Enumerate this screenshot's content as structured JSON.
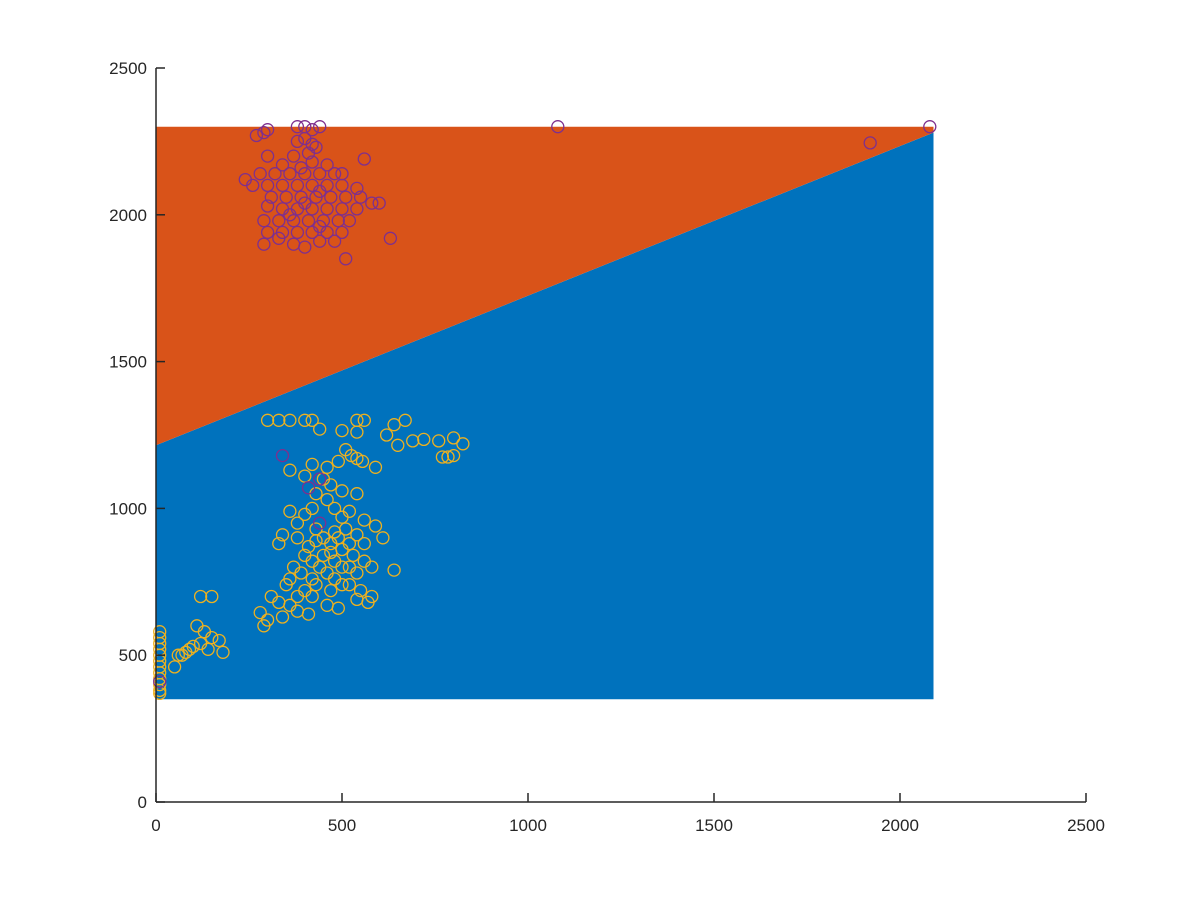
{
  "chart_data": {
    "type": "scatter",
    "title": "",
    "xlabel": "",
    "ylabel": "",
    "xlim": [
      0,
      2500
    ],
    "ylim": [
      0,
      2500
    ],
    "xticks": [
      0,
      500,
      1000,
      1500,
      2000,
      2500
    ],
    "yticks": [
      0,
      500,
      1000,
      1500,
      2000,
      2500
    ],
    "xtick_labels": [
      "0",
      "500",
      "1000",
      "1500",
      "2000",
      "2500"
    ],
    "ytick_labels": [
      "0",
      "500",
      "1000",
      "1500",
      "2000",
      "2500"
    ],
    "grid": false,
    "legend": "none",
    "decision_regions": {
      "x_range": [
        0,
        2090
      ],
      "y_range": [
        350,
        2300
      ],
      "boundary_line": [
        [
          0,
          1215
        ],
        [
          2090,
          2280
        ]
      ],
      "below_color": "#0072BD",
      "above_color": "#D95319"
    },
    "series": [
      {
        "marker": "circle-open",
        "color": "#EDB120",
        "points": [
          [
            300,
            1300
          ],
          [
            330,
            1300
          ],
          [
            360,
            1300
          ],
          [
            400,
            1300
          ],
          [
            420,
            1300
          ],
          [
            540,
            1300
          ],
          [
            560,
            1300
          ],
          [
            640,
            1285
          ],
          [
            670,
            1300
          ],
          [
            440,
            1270
          ],
          [
            500,
            1265
          ],
          [
            540,
            1260
          ],
          [
            620,
            1250
          ],
          [
            690,
            1230
          ],
          [
            720,
            1235
          ],
          [
            760,
            1230
          ],
          [
            800,
            1240
          ],
          [
            825,
            1220
          ],
          [
            650,
            1215
          ],
          [
            770,
            1175
          ],
          [
            785,
            1175
          ],
          [
            800,
            1180
          ],
          [
            510,
            1200
          ],
          [
            525,
            1180
          ],
          [
            540,
            1170
          ],
          [
            555,
            1160
          ],
          [
            490,
            1160
          ],
          [
            420,
            1150
          ],
          [
            460,
            1140
          ],
          [
            590,
            1140
          ],
          [
            360,
            1130
          ],
          [
            400,
            1110
          ],
          [
            450,
            1100
          ],
          [
            470,
            1080
          ],
          [
            500,
            1060
          ],
          [
            540,
            1050
          ],
          [
            430,
            1050
          ],
          [
            460,
            1030
          ],
          [
            360,
            990
          ],
          [
            400,
            980
          ],
          [
            420,
            1000
          ],
          [
            480,
            1000
          ],
          [
            520,
            990
          ],
          [
            380,
            950
          ],
          [
            430,
            930
          ],
          [
            330,
            880
          ],
          [
            340,
            910
          ],
          [
            380,
            900
          ],
          [
            500,
            970
          ],
          [
            560,
            960
          ],
          [
            590,
            940
          ],
          [
            610,
            900
          ],
          [
            640,
            790
          ],
          [
            370,
            800
          ],
          [
            390,
            780
          ],
          [
            360,
            760
          ],
          [
            350,
            740
          ],
          [
            420,
            760
          ],
          [
            470,
            720
          ],
          [
            520,
            740
          ],
          [
            550,
            720
          ],
          [
            580,
            700
          ],
          [
            310,
            700
          ],
          [
            330,
            680
          ],
          [
            360,
            670
          ],
          [
            380,
            650
          ],
          [
            410,
            640
          ],
          [
            460,
            670
          ],
          [
            490,
            660
          ],
          [
            540,
            690
          ],
          [
            570,
            680
          ],
          [
            340,
            630
          ],
          [
            300,
            620
          ],
          [
            280,
            645
          ],
          [
            290,
            600
          ],
          [
            450,
            900
          ],
          [
            470,
            880
          ],
          [
            500,
            860
          ],
          [
            530,
            840
          ],
          [
            560,
            820
          ],
          [
            580,
            800
          ],
          [
            420,
            820
          ],
          [
            440,
            800
          ],
          [
            460,
            780
          ],
          [
            480,
            760
          ],
          [
            500,
            740
          ],
          [
            400,
            840
          ],
          [
            410,
            870
          ],
          [
            430,
            890
          ],
          [
            480,
            920
          ],
          [
            510,
            930
          ],
          [
            540,
            910
          ],
          [
            560,
            880
          ],
          [
            520,
            800
          ],
          [
            540,
            780
          ],
          [
            450,
            840
          ],
          [
            480,
            820
          ],
          [
            500,
            800
          ],
          [
            520,
            880
          ],
          [
            470,
            850
          ],
          [
            490,
            900
          ],
          [
            430,
            740
          ],
          [
            400,
            720
          ],
          [
            380,
            700
          ],
          [
            420,
            700
          ],
          [
            120,
            700
          ],
          [
            150,
            700
          ],
          [
            110,
            600
          ],
          [
            130,
            580
          ],
          [
            150,
            560
          ],
          [
            170,
            550
          ],
          [
            120,
            540
          ],
          [
            100,
            530
          ],
          [
            90,
            520
          ],
          [
            80,
            510
          ],
          [
            70,
            500
          ],
          [
            60,
            500
          ],
          [
            50,
            460
          ],
          [
            180,
            510
          ],
          [
            140,
            520
          ],
          [
            10,
            580
          ],
          [
            10,
            560
          ],
          [
            10,
            540
          ],
          [
            10,
            520
          ],
          [
            10,
            500
          ],
          [
            10,
            480
          ],
          [
            10,
            460
          ],
          [
            10,
            440
          ],
          [
            10,
            420
          ],
          [
            10,
            400
          ],
          [
            10,
            380
          ],
          [
            10,
            370
          ]
        ]
      },
      {
        "marker": "circle-open",
        "color": "#7E2F8E",
        "points": [
          [
            380,
            2300
          ],
          [
            400,
            2300
          ],
          [
            420,
            2290
          ],
          [
            440,
            2300
          ],
          [
            300,
            2290
          ],
          [
            290,
            2280
          ],
          [
            270,
            2270
          ],
          [
            1080,
            2300
          ],
          [
            2080,
            2300
          ],
          [
            1920,
            2245
          ],
          [
            400,
            2260
          ],
          [
            380,
            2250
          ],
          [
            420,
            2240
          ],
          [
            430,
            2230
          ],
          [
            300,
            2200
          ],
          [
            370,
            2200
          ],
          [
            410,
            2210
          ],
          [
            560,
            2190
          ],
          [
            280,
            2140
          ],
          [
            320,
            2140
          ],
          [
            360,
            2140
          ],
          [
            400,
            2140
          ],
          [
            440,
            2140
          ],
          [
            480,
            2140
          ],
          [
            500,
            2140
          ],
          [
            240,
            2120
          ],
          [
            260,
            2100
          ],
          [
            300,
            2100
          ],
          [
            340,
            2100
          ],
          [
            380,
            2100
          ],
          [
            420,
            2100
          ],
          [
            460,
            2100
          ],
          [
            500,
            2100
          ],
          [
            540,
            2090
          ],
          [
            310,
            2060
          ],
          [
            350,
            2060
          ],
          [
            390,
            2060
          ],
          [
            430,
            2060
          ],
          [
            470,
            2060
          ],
          [
            510,
            2060
          ],
          [
            550,
            2060
          ],
          [
            580,
            2040
          ],
          [
            300,
            2030
          ],
          [
            340,
            2020
          ],
          [
            380,
            2020
          ],
          [
            420,
            2020
          ],
          [
            460,
            2020
          ],
          [
            500,
            2020
          ],
          [
            540,
            2020
          ],
          [
            290,
            1980
          ],
          [
            330,
            1980
          ],
          [
            370,
            1980
          ],
          [
            410,
            1980
          ],
          [
            450,
            1980
          ],
          [
            490,
            1980
          ],
          [
            520,
            1980
          ],
          [
            300,
            1940
          ],
          [
            340,
            1940
          ],
          [
            380,
            1940
          ],
          [
            420,
            1940
          ],
          [
            460,
            1940
          ],
          [
            500,
            1940
          ],
          [
            290,
            1900
          ],
          [
            330,
            1920
          ],
          [
            370,
            1900
          ],
          [
            400,
            1890
          ],
          [
            440,
            1910
          ],
          [
            480,
            1910
          ],
          [
            510,
            1850
          ],
          [
            600,
            2040
          ],
          [
            630,
            1920
          ],
          [
            420,
            2180
          ],
          [
            460,
            2170
          ],
          [
            340,
            2170
          ],
          [
            390,
            2160
          ],
          [
            440,
            2080
          ],
          [
            400,
            2040
          ],
          [
            360,
            2000
          ],
          [
            440,
            1960
          ],
          [
            410,
            1070
          ],
          [
            440,
            1100
          ],
          [
            340,
            1180
          ],
          [
            440,
            950
          ],
          [
            10,
            410
          ]
        ]
      }
    ]
  }
}
